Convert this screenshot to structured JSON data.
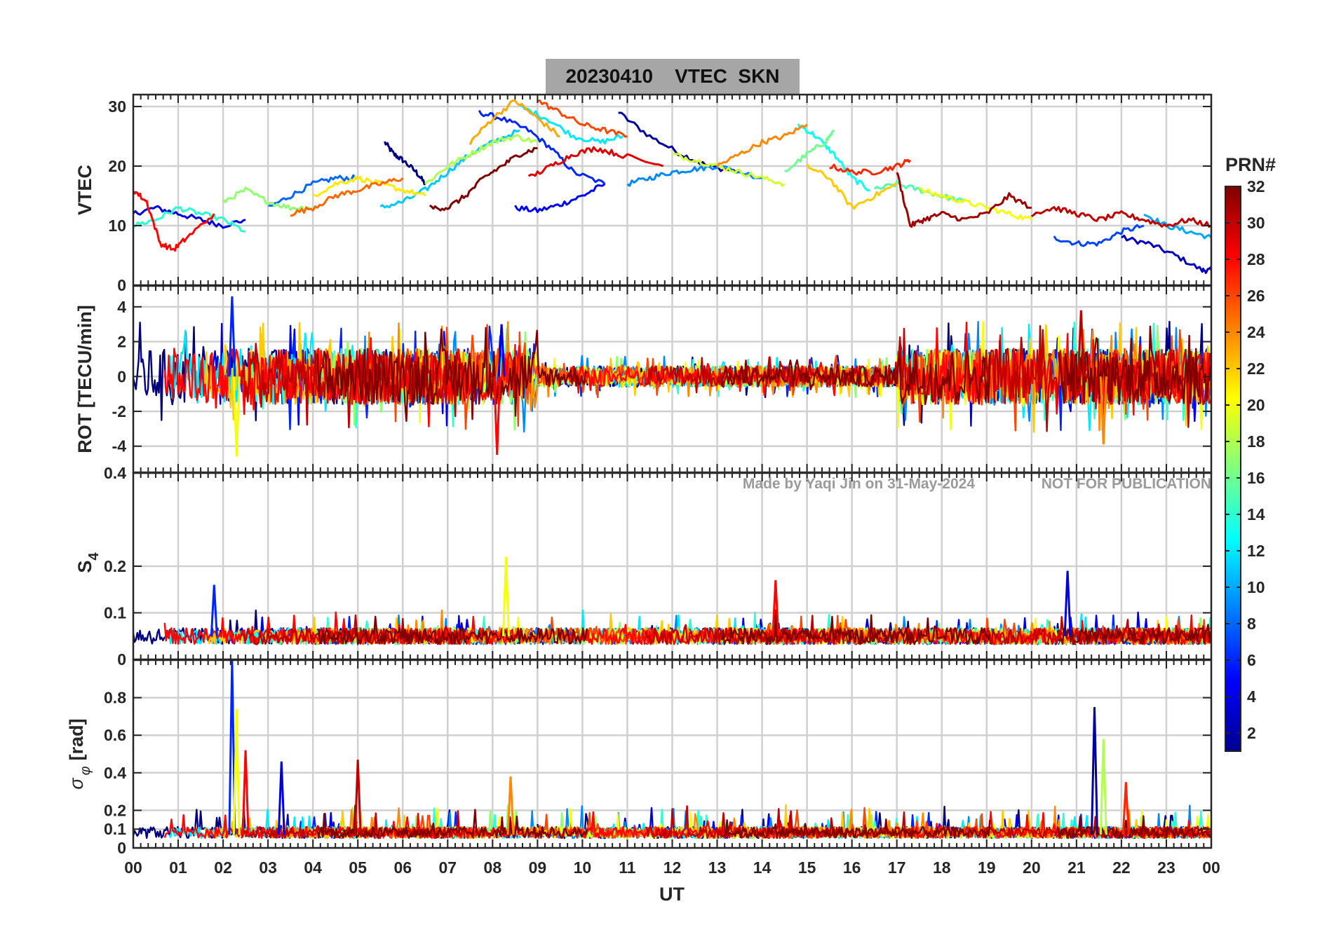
{
  "figure": {
    "title": "20230410    VTEC  SKN",
    "watermark_left": "Made by Yaqi Jin on 31-May-2024",
    "watermark_right": "NOT FOR PUBLICATION",
    "x_label": "UT",
    "x_ticks": [
      "00",
      "01",
      "02",
      "03",
      "04",
      "05",
      "06",
      "07",
      "08",
      "09",
      "10",
      "11",
      "12",
      "13",
      "14",
      "15",
      "16",
      "17",
      "18",
      "19",
      "20",
      "21",
      "22",
      "23",
      "00"
    ],
    "colorbar": {
      "label": "PRN#",
      "range": [
        1,
        32
      ],
      "ticks": [
        2,
        4,
        6,
        8,
        10,
        12,
        14,
        16,
        18,
        20,
        22,
        24,
        26,
        28,
        30,
        32
      ],
      "colormap": "jet"
    }
  },
  "chart_data": [
    {
      "type": "line",
      "ylabel": "VTEC",
      "xlim": [
        0,
        24
      ],
      "ylim": [
        0,
        32
      ],
      "yticks": [
        0,
        10,
        20,
        30
      ],
      "grid": true,
      "series_note_prn_colored": true,
      "series": [
        {
          "prn": 1,
          "points": [
            [
              5.6,
              24
            ],
            [
              5.8,
              22
            ],
            [
              6.0,
              21
            ],
            [
              6.3,
              19
            ],
            [
              6.5,
              17
            ]
          ]
        },
        {
          "prn": 2,
          "points": [
            [
              10.8,
              29
            ],
            [
              11.5,
              25
            ],
            [
              12.2,
              22
            ],
            [
              12.8,
              20
            ],
            [
              13.5,
              19
            ]
          ]
        },
        {
          "prn": 3,
          "points": [
            [
              22.0,
              8
            ],
            [
              22.6,
              7
            ],
            [
              23.2,
              5
            ],
            [
              23.8,
              2.5
            ],
            [
              24.0,
              2.5
            ]
          ]
        },
        {
          "prn": 4,
          "points": [
            [
              0.0,
              12
            ],
            [
              0.5,
              13
            ],
            [
              1.0,
              12
            ],
            [
              1.5,
              11
            ],
            [
              2.0,
              10
            ],
            [
              2.5,
              11
            ]
          ]
        },
        {
          "prn": 5,
          "points": [
            [
              8.5,
              13
            ],
            [
              9.0,
              12.5
            ],
            [
              9.5,
              13.5
            ],
            [
              10.0,
              15
            ],
            [
              10.5,
              17
            ]
          ]
        },
        {
          "prn": 6,
          "points": [
            [
              7.7,
              29
            ],
            [
              8.2,
              28
            ],
            [
              8.8,
              26
            ],
            [
              9.3,
              23
            ],
            [
              9.8,
              19
            ],
            [
              10.5,
              17
            ]
          ]
        },
        {
          "prn": 7,
          "points": [
            [
              20.5,
              8
            ],
            [
              21.0,
              7
            ],
            [
              21.5,
              7
            ],
            [
              22.0,
              9
            ],
            [
              22.5,
              10
            ]
          ]
        },
        {
          "prn": 8,
          "points": [
            [
              3.0,
              13
            ],
            [
              3.5,
              15
            ],
            [
              4.0,
              17
            ],
            [
              4.5,
              18
            ],
            [
              5.0,
              18
            ]
          ]
        },
        {
          "prn": 9,
          "points": [
            [
              11.0,
              17
            ],
            [
              11.5,
              18
            ],
            [
              12.0,
              19
            ],
            [
              12.5,
              19.5
            ],
            [
              13.0,
              20
            ],
            [
              14.0,
              18
            ]
          ]
        },
        {
          "prn": 10,
          "points": [
            [
              22.5,
              12
            ],
            [
              23.0,
              10
            ],
            [
              23.5,
              9
            ],
            [
              24.0,
              8
            ]
          ]
        },
        {
          "prn": 11,
          "points": [
            [
              5.5,
              13
            ],
            [
              6.0,
              14
            ],
            [
              6.5,
              16
            ],
            [
              7.0,
              19
            ],
            [
              7.5,
              22
            ],
            [
              8.0,
              24
            ],
            [
              8.6,
              26
            ]
          ]
        },
        {
          "prn": 12,
          "points": [
            [
              8.6,
              30
            ],
            [
              9.2,
              28
            ],
            [
              9.8,
              25
            ],
            [
              10.4,
              24
            ],
            [
              10.9,
              25
            ]
          ]
        },
        {
          "prn": 13,
          "points": [
            [
              14.8,
              27
            ],
            [
              15.2,
              25
            ],
            [
              15.6,
              22
            ],
            [
              16.0,
              18
            ],
            [
              16.4,
              16
            ]
          ]
        },
        {
          "prn": 14,
          "points": [
            [
              0.0,
              10
            ],
            [
              0.5,
              11
            ],
            [
              1.0,
              13
            ],
            [
              1.5,
              12
            ],
            [
              2.0,
              11
            ],
            [
              2.5,
              9
            ]
          ]
        },
        {
          "prn": 15,
          "points": [
            [
              16.5,
              16
            ],
            [
              17.0,
              17
            ],
            [
              17.5,
              16
            ],
            [
              18.0,
              15
            ],
            [
              18.5,
              14
            ]
          ]
        },
        {
          "prn": 16,
          "points": [
            [
              14.5,
              19
            ],
            [
              15.0,
              22
            ],
            [
              15.4,
              24
            ],
            [
              15.6,
              26
            ]
          ]
        },
        {
          "prn": 17,
          "points": [
            [
              2.0,
              14
            ],
            [
              2.5,
              16
            ],
            [
              3.0,
              14
            ],
            [
              3.5,
              13
            ],
            [
              4.0,
              13
            ]
          ]
        },
        {
          "prn": 18,
          "points": [
            [
              6.5,
              17
            ],
            [
              7.0,
              20
            ],
            [
              7.5,
              22
            ],
            [
              8.0,
              24
            ],
            [
              8.5,
              25
            ],
            [
              9.0,
              24
            ]
          ]
        },
        {
          "prn": 19,
          "points": [
            [
              12.0,
              22
            ],
            [
              12.5,
              21
            ],
            [
              13.0,
              20
            ],
            [
              13.5,
              19
            ],
            [
              14.0,
              18
            ],
            [
              14.5,
              17
            ]
          ]
        },
        {
          "prn": 20,
          "points": [
            [
              17.5,
              16
            ],
            [
              18.0,
              15
            ],
            [
              18.5,
              14
            ],
            [
              19.0,
              13
            ],
            [
              19.5,
              12
            ],
            [
              20.0,
              11
            ]
          ]
        },
        {
          "prn": 21,
          "points": [
            [
              4.0,
              15
            ],
            [
              4.5,
              17
            ],
            [
              5.0,
              18
            ],
            [
              5.5,
              17
            ],
            [
              6.0,
              16
            ],
            [
              6.5,
              15
            ]
          ]
        },
        {
          "prn": 22,
          "points": [
            [
              15.0,
              20
            ],
            [
              15.5,
              18
            ],
            [
              16.0,
              13
            ],
            [
              16.5,
              15
            ],
            [
              17.0,
              17
            ]
          ]
        },
        {
          "prn": 23,
          "points": [
            [
              7.5,
              24
            ],
            [
              8.0,
              28
            ],
            [
              8.5,
              31
            ],
            [
              9.0,
              28
            ],
            [
              9.5,
              25
            ]
          ]
        },
        {
          "prn": 24,
          "points": [
            [
              13.0,
              20
            ],
            [
              13.5,
              22
            ],
            [
              14.0,
              24
            ],
            [
              14.5,
              25
            ],
            [
              15.0,
              27
            ]
          ]
        },
        {
          "prn": 25,
          "points": [
            [
              3.5,
              12
            ],
            [
              4.0,
              13
            ],
            [
              4.5,
              15
            ],
            [
              5.0,
              16
            ],
            [
              5.5,
              17
            ],
            [
              6.0,
              18
            ]
          ]
        },
        {
          "prn": 26,
          "points": [
            [
              9.0,
              31
            ],
            [
              9.5,
              29
            ],
            [
              10.0,
              27
            ],
            [
              10.5,
              26
            ],
            [
              11.0,
              25
            ]
          ]
        },
        {
          "prn": 27,
          "points": [
            [
              15.5,
              20
            ],
            [
              16.0,
              19
            ],
            [
              16.5,
              19
            ],
            [
              17.0,
              20
            ],
            [
              17.3,
              21
            ]
          ]
        },
        {
          "prn": 28,
          "points": [
            [
              0.0,
              16
            ],
            [
              0.3,
              14
            ],
            [
              0.6,
              7
            ],
            [
              0.9,
              6
            ],
            [
              1.2,
              8
            ],
            [
              1.8,
              12
            ]
          ]
        },
        {
          "prn": 29,
          "points": [
            [
              8.8,
              18
            ],
            [
              9.3,
              20
            ],
            [
              9.8,
              22
            ],
            [
              10.3,
              23
            ],
            [
              10.8,
              22
            ],
            [
              11.8,
              20
            ]
          ]
        },
        {
          "prn": 30,
          "points": [
            [
              20.0,
              12
            ],
            [
              20.5,
              13
            ],
            [
              21.0,
              12
            ],
            [
              21.5,
              11
            ],
            [
              22.0,
              12
            ],
            [
              22.5,
              11
            ],
            [
              23.0,
              10
            ],
            [
              23.5,
              11
            ],
            [
              24.0,
              10
            ]
          ]
        },
        {
          "prn": 31,
          "points": [
            [
              17.0,
              19
            ],
            [
              17.3,
              10
            ],
            [
              17.6,
              11
            ],
            [
              18.0,
              12
            ],
            [
              18.5,
              11
            ],
            [
              19.0,
              12
            ],
            [
              19.5,
              15
            ],
            [
              20.0,
              13
            ]
          ]
        },
        {
          "prn": 32,
          "points": [
            [
              6.6,
              13
            ],
            [
              7.0,
              13
            ],
            [
              7.4,
              15
            ],
            [
              7.8,
              18
            ],
            [
              8.2,
              20
            ],
            [
              8.6,
              22
            ],
            [
              9.0,
              23
            ]
          ]
        }
      ]
    },
    {
      "type": "line",
      "ylabel": "ROT [TECU/min]",
      "xlim": [
        0,
        24
      ],
      "ylim": [
        -5.5,
        5.2
      ],
      "yticks": [
        -4,
        -2,
        0,
        2,
        4
      ],
      "grid": true,
      "notable_values": [
        {
          "x": 2.2,
          "y": 4.6
        },
        {
          "x": 2.3,
          "y": -4.6
        },
        {
          "x": 8.1,
          "y": -4.5
        },
        {
          "x": 8.2,
          "y": 3.0
        },
        {
          "x": 21.1,
          "y": 3.8
        },
        {
          "x": 21.6,
          "y": -3.9
        }
      ]
    },
    {
      "type": "line",
      "ylabel": "S4",
      "xlim": [
        0,
        24
      ],
      "ylim": [
        0,
        0.4
      ],
      "yticks": [
        0,
        0.1,
        0.2,
        0.4
      ],
      "grid": true,
      "baseline": 0.05,
      "notable_values": [
        {
          "x": 1.8,
          "y": 0.16
        },
        {
          "x": 8.3,
          "y": 0.22
        },
        {
          "x": 14.3,
          "y": 0.17
        },
        {
          "x": 20.8,
          "y": 0.19
        }
      ]
    },
    {
      "type": "line",
      "ylabel": "σφ [rad]",
      "xlim": [
        0,
        24
      ],
      "ylim": [
        0,
        1.0
      ],
      "yticks": [
        0,
        0.1,
        0.2,
        0.4,
        0.6,
        0.8
      ],
      "grid": true,
      "baseline": 0.07,
      "notable_values": [
        {
          "x": 2.2,
          "y": 1.0
        },
        {
          "x": 2.3,
          "y": 0.74
        },
        {
          "x": 2.5,
          "y": 0.52
        },
        {
          "x": 3.3,
          "y": 0.46
        },
        {
          "x": 5.0,
          "y": 0.47
        },
        {
          "x": 8.4,
          "y": 0.38
        },
        {
          "x": 21.4,
          "y": 0.75
        },
        {
          "x": 21.6,
          "y": 0.58
        },
        {
          "x": 22.1,
          "y": 0.35
        }
      ]
    }
  ]
}
